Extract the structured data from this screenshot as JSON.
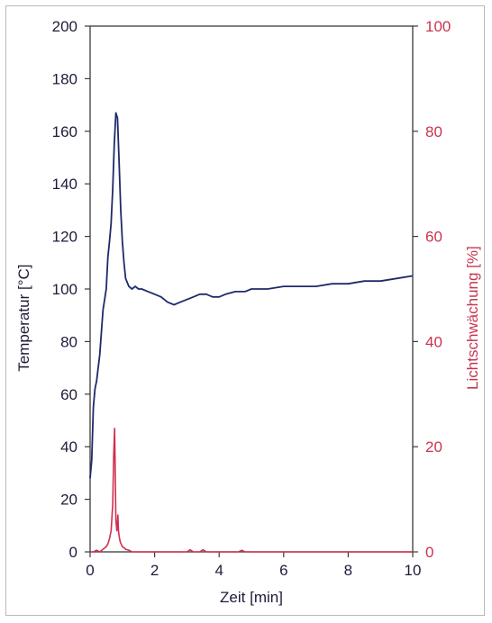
{
  "chart_data": {
    "type": "line",
    "title": "",
    "xlabel": "Zeit [min]",
    "ylabel": "Temperatur [°C]",
    "y2label": "Lichtschwächung [%]",
    "xlim": [
      0,
      10
    ],
    "ylim": [
      0,
      200
    ],
    "y2lim": [
      0,
      100
    ],
    "x_ticks": [
      "0",
      "2",
      "4",
      "6",
      "8",
      "10"
    ],
    "y_ticks": [
      "0",
      "20",
      "40",
      "60",
      "80",
      "100",
      "120",
      "140",
      "160",
      "180",
      "200"
    ],
    "y2_ticks": [
      "0",
      "20",
      "40",
      "60",
      "80",
      "100"
    ],
    "grid": false,
    "colors": {
      "temperature": "#1e2a6a",
      "light": "#d0304f",
      "axis": "#1c1c3a",
      "right_axis": "#c8354f"
    },
    "series": [
      {
        "name": "Temperatur",
        "axis": "left",
        "x": [
          0.0,
          0.05,
          0.1,
          0.15,
          0.2,
          0.3,
          0.4,
          0.5,
          0.55,
          0.6,
          0.65,
          0.7,
          0.75,
          0.8,
          0.85,
          0.9,
          0.95,
          1.0,
          1.05,
          1.1,
          1.2,
          1.3,
          1.4,
          1.5,
          1.6,
          1.8,
          2.0,
          2.2,
          2.4,
          2.6,
          2.8,
          3.0,
          3.2,
          3.4,
          3.6,
          3.8,
          4.0,
          4.2,
          4.5,
          4.8,
          5.0,
          5.5,
          6.0,
          6.5,
          7.0,
          7.5,
          8.0,
          8.5,
          9.0,
          9.5,
          10.0
        ],
        "values": [
          28,
          35,
          55,
          62,
          65,
          75,
          92,
          100,
          112,
          118,
          125,
          138,
          155,
          167,
          165,
          148,
          130,
          118,
          110,
          104,
          101,
          100,
          101,
          100,
          100,
          99,
          98,
          97,
          95,
          94,
          95,
          96,
          97,
          98,
          98,
          97,
          97,
          98,
          99,
          99,
          100,
          100,
          101,
          101,
          101,
          102,
          102,
          103,
          103,
          104,
          105
        ]
      },
      {
        "name": "Lichtschwächung",
        "axis": "right",
        "x": [
          0.0,
          0.1,
          0.2,
          0.3,
          0.4,
          0.5,
          0.55,
          0.6,
          0.65,
          0.7,
          0.73,
          0.76,
          0.78,
          0.8,
          0.83,
          0.86,
          0.88,
          0.9,
          0.93,
          0.96,
          1.0,
          1.05,
          1.1,
          1.2,
          1.3,
          1.5,
          2.0,
          2.5,
          3.0,
          3.1,
          3.2,
          3.4,
          3.5,
          3.6,
          4.0,
          4.6,
          4.7,
          4.8,
          5.5,
          6.0,
          7.0,
          8.0,
          9.0,
          10.0
        ],
        "values": [
          0,
          0,
          0.3,
          0,
          0.5,
          1,
          1.5,
          2.5,
          4,
          9,
          18,
          23.5,
          15,
          6,
          4,
          7,
          4,
          3,
          2,
          1.5,
          1,
          0.8,
          0.5,
          0.3,
          0,
          0,
          0,
          0,
          0,
          0.4,
          0,
          0,
          0.4,
          0,
          0,
          0,
          0.3,
          0,
          0,
          0,
          0,
          0,
          0,
          0
        ]
      }
    ]
  }
}
